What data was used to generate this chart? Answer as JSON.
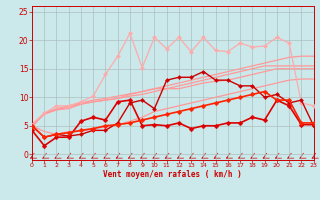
{
  "xlabel": "Vent moyen/en rafales ( km/h )",
  "xlim": [
    0,
    23
  ],
  "ylim": [
    -1,
    26
  ],
  "yticks": [
    0,
    5,
    10,
    15,
    20,
    25
  ],
  "xticks": [
    0,
    1,
    2,
    3,
    4,
    5,
    6,
    7,
    8,
    9,
    10,
    11,
    12,
    13,
    14,
    15,
    16,
    17,
    18,
    19,
    20,
    21,
    22,
    23
  ],
  "bg_color": "#cbe8ea",
  "lines": [
    {
      "x": [
        0,
        1,
        2,
        3,
        4,
        5,
        6,
        7,
        8,
        9,
        10,
        11,
        12,
        13,
        14,
        15,
        16,
        17,
        18,
        19,
        20,
        21,
        22,
        23
      ],
      "y": [
        5.2,
        7.2,
        8.0,
        8.5,
        9.0,
        9.5,
        9.8,
        10.2,
        10.6,
        11.0,
        11.5,
        12.0,
        12.5,
        13.0,
        13.5,
        14.0,
        14.5,
        15.0,
        15.5,
        16.0,
        16.5,
        17.0,
        17.2,
        17.2
      ],
      "color": "#ff9999",
      "lw": 0.9,
      "marker": null,
      "ms": 0,
      "zorder": 2
    },
    {
      "x": [
        0,
        1,
        2,
        3,
        4,
        5,
        6,
        7,
        8,
        9,
        10,
        11,
        12,
        13,
        14,
        15,
        16,
        17,
        18,
        19,
        20,
        21,
        22,
        23
      ],
      "y": [
        5.0,
        7.0,
        7.8,
        8.3,
        8.8,
        9.2,
        9.5,
        9.8,
        10.2,
        10.5,
        11.0,
        11.5,
        12.0,
        12.5,
        13.0,
        13.5,
        14.0,
        14.5,
        15.0,
        15.5,
        15.5,
        15.5,
        15.5,
        15.5
      ],
      "color": "#ff9999",
      "lw": 0.9,
      "marker": null,
      "ms": 0,
      "zorder": 2
    },
    {
      "x": [
        0,
        1,
        2,
        3,
        4,
        5,
        6,
        7,
        8,
        9,
        10,
        11,
        12,
        13,
        14,
        15,
        16,
        17,
        18,
        19,
        20,
        21,
        22,
        23
      ],
      "y": [
        4.8,
        7.2,
        7.8,
        8.0,
        8.8,
        9.2,
        9.5,
        9.8,
        10.5,
        11.0,
        11.5,
        11.5,
        11.5,
        12.0,
        12.5,
        12.8,
        13.0,
        13.5,
        14.0,
        14.5,
        15.0,
        15.0,
        15.0,
        15.0
      ],
      "color": "#ff9999",
      "lw": 0.9,
      "marker": null,
      "ms": 0,
      "zorder": 2
    },
    {
      "x": [
        0,
        1,
        2,
        3,
        4,
        5,
        6,
        7,
        8,
        9,
        10,
        11,
        12,
        13,
        14,
        15,
        16,
        17,
        18,
        19,
        20,
        21,
        22,
        23
      ],
      "y": [
        5.0,
        4.0,
        3.5,
        4.0,
        4.0,
        4.5,
        4.8,
        5.2,
        5.8,
        6.5,
        7.5,
        8.0,
        8.5,
        9.0,
        9.5,
        10.0,
        10.5,
        11.0,
        11.5,
        12.0,
        12.5,
        13.0,
        13.2,
        13.2
      ],
      "color": "#ff9999",
      "lw": 0.9,
      "marker": null,
      "ms": 0,
      "zorder": 2
    },
    {
      "x": [
        0,
        1,
        2,
        3,
        4,
        5,
        6,
        7,
        8,
        9,
        10,
        11,
        12,
        13,
        14,
        15,
        16,
        17,
        18,
        19,
        20,
        21,
        22,
        23
      ],
      "y": [
        5.2,
        7.2,
        8.5,
        8.5,
        9.2,
        10.2,
        14.0,
        17.2,
        21.2,
        15.2,
        20.5,
        18.5,
        20.5,
        18.0,
        20.5,
        18.2,
        18.0,
        19.5,
        18.8,
        19.0,
        20.5,
        19.5,
        9.0,
        8.5
      ],
      "color": "#ffaaaa",
      "lw": 0.9,
      "marker": "D",
      "ms": 2.2,
      "zorder": 3
    },
    {
      "x": [
        0,
        1,
        2,
        3,
        4,
        5,
        6,
        7,
        8,
        9,
        10,
        11,
        12,
        13,
        14,
        15,
        16,
        17,
        18,
        19,
        20,
        21,
        22,
        23
      ],
      "y": [
        5.0,
        3.0,
        3.5,
        3.2,
        3.5,
        4.2,
        4.2,
        5.5,
        9.0,
        9.5,
        8.0,
        13.0,
        13.5,
        13.5,
        14.5,
        13.0,
        13.0,
        12.0,
        12.0,
        10.0,
        10.5,
        9.0,
        9.5,
        5.0
      ],
      "color": "#cc0000",
      "lw": 1.0,
      "marker": "D",
      "ms": 2.2,
      "zorder": 4
    },
    {
      "x": [
        0,
        1,
        2,
        3,
        4,
        5,
        6,
        7,
        8,
        9,
        10,
        11,
        12,
        13,
        14,
        15,
        16,
        17,
        18,
        19,
        20,
        21,
        22,
        23
      ],
      "y": [
        4.2,
        1.5,
        3.0,
        3.0,
        5.8,
        6.5,
        6.0,
        9.2,
        9.5,
        5.0,
        5.2,
        5.0,
        5.5,
        4.5,
        5.0,
        5.0,
        5.5,
        5.5,
        6.5,
        6.0,
        9.5,
        8.5,
        5.2,
        5.2
      ],
      "color": "#dd0000",
      "lw": 1.2,
      "marker": "D",
      "ms": 2.5,
      "zorder": 5
    },
    {
      "x": [
        0,
        1,
        2,
        3,
        4,
        5,
        6,
        7,
        8,
        9,
        10,
        11,
        12,
        13,
        14,
        15,
        16,
        17,
        18,
        19,
        20,
        21,
        22,
        23
      ],
      "y": [
        5.0,
        3.0,
        3.5,
        3.8,
        4.2,
        4.5,
        5.0,
        5.2,
        5.5,
        6.0,
        6.5,
        7.0,
        7.5,
        8.0,
        8.5,
        9.0,
        9.5,
        10.0,
        10.5,
        11.0,
        9.5,
        9.5,
        5.5,
        5.5
      ],
      "color": "#ff2200",
      "lw": 1.2,
      "marker": "D",
      "ms": 2.5,
      "zorder": 5
    }
  ],
  "arrow_color": "#cc0000",
  "spine_color": "#cc0000",
  "tick_color": "#cc0000",
  "label_color": "#cc0000"
}
